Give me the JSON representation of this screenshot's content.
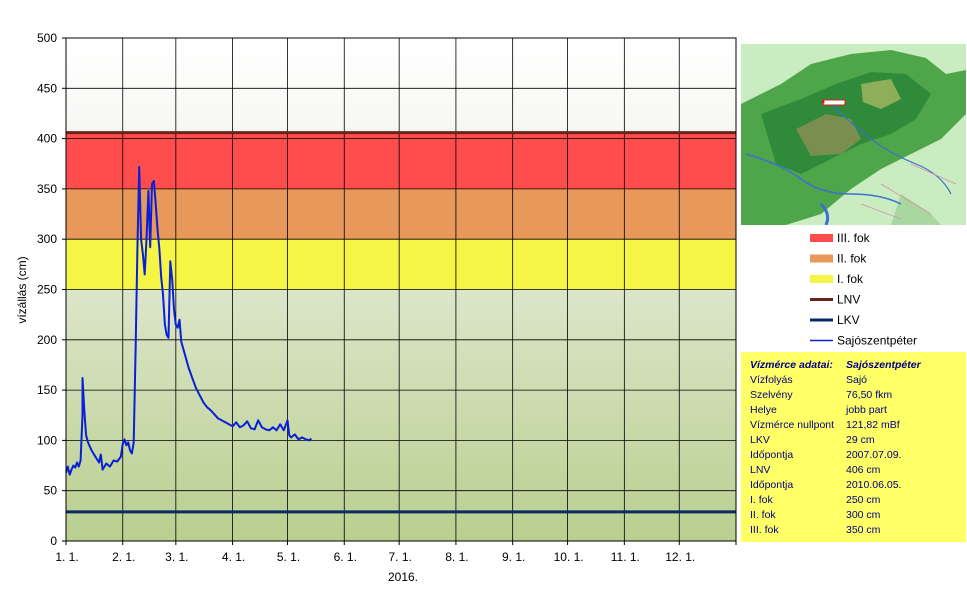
{
  "chart_data": {
    "type": "line",
    "ylabel": "vízállás (cm)",
    "xlabel": "2016.",
    "ylim": [
      0,
      500
    ],
    "yticks": [
      0,
      50,
      100,
      150,
      200,
      250,
      300,
      350,
      400,
      450,
      500
    ],
    "x_range": [
      "2016-01-01",
      "2017-01-01"
    ],
    "x_tick_labels": [
      "1. 1.",
      "2. 1.",
      "3. 1.",
      "4. 1.",
      "5. 1.",
      "6. 1.",
      "7. 1.",
      "8. 1.",
      "9. 1.",
      "10. 1.",
      "11. 1.",
      "12. 1."
    ],
    "grid": true,
    "legend_position": "right",
    "bands": [
      {
        "name": "III. fok",
        "from": 350,
        "to": 406,
        "color": "#ff4d4d"
      },
      {
        "name": "II. fok",
        "from": 300,
        "to": 350,
        "color": "#e8995a"
      },
      {
        "name": "I. fok",
        "from": 250,
        "to": 300,
        "color": "#f5f545"
      }
    ],
    "reference_lines": [
      {
        "name": "LNV",
        "value": 406,
        "color": "#6b2418"
      },
      {
        "name": "LKV",
        "value": 29,
        "color": "#0a2a66"
      }
    ],
    "series": [
      {
        "name": "Sajószentpéter",
        "color": "#0a1fd6",
        "points": [
          [
            "2016-01-01",
            68
          ],
          [
            "2016-01-02",
            74
          ],
          [
            "2016-01-03",
            66
          ],
          [
            "2016-01-04",
            71
          ],
          [
            "2016-01-05",
            75
          ],
          [
            "2016-01-06",
            73
          ],
          [
            "2016-01-07",
            78
          ],
          [
            "2016-01-08",
            74
          ],
          [
            "2016-01-09",
            80
          ],
          [
            "2016-01-10",
            125
          ],
          [
            "2016-01-10",
            162
          ],
          [
            "2016-01-11",
            130
          ],
          [
            "2016-01-12",
            105
          ],
          [
            "2016-01-13",
            98
          ],
          [
            "2016-01-15",
            90
          ],
          [
            "2016-01-17",
            84
          ],
          [
            "2016-01-19",
            78
          ],
          [
            "2016-01-20",
            86
          ],
          [
            "2016-01-21",
            71
          ],
          [
            "2016-01-23",
            77
          ],
          [
            "2016-01-25",
            74
          ],
          [
            "2016-01-27",
            80
          ],
          [
            "2016-01-29",
            79
          ],
          [
            "2016-01-31",
            84
          ],
          [
            "2016-02-01",
            96
          ],
          [
            "2016-02-02",
            101
          ],
          [
            "2016-02-03",
            95
          ],
          [
            "2016-02-04",
            98
          ],
          [
            "2016-02-05",
            90
          ],
          [
            "2016-02-06",
            87
          ],
          [
            "2016-02-07",
            98
          ],
          [
            "2016-02-08",
            190
          ],
          [
            "2016-02-09",
            290
          ],
          [
            "2016-02-10",
            372
          ],
          [
            "2016-02-11",
            300
          ],
          [
            "2016-02-12",
            285
          ],
          [
            "2016-02-13",
            265
          ],
          [
            "2016-02-14",
            300
          ],
          [
            "2016-02-15",
            348
          ],
          [
            "2016-02-16",
            292
          ],
          [
            "2016-02-17",
            355
          ],
          [
            "2016-02-18",
            358
          ],
          [
            "2016-02-19",
            335
          ],
          [
            "2016-02-20",
            310
          ],
          [
            "2016-02-21",
            290
          ],
          [
            "2016-02-22",
            262
          ],
          [
            "2016-02-23",
            245
          ],
          [
            "2016-02-24",
            215
          ],
          [
            "2016-02-25",
            205
          ],
          [
            "2016-02-26",
            202
          ],
          [
            "2016-02-27",
            278
          ],
          [
            "2016-02-28",
            260
          ],
          [
            "2016-02-29",
            230
          ],
          [
            "2016-03-01",
            215
          ],
          [
            "2016-03-02",
            212
          ],
          [
            "2016-03-03",
            220
          ],
          [
            "2016-03-04",
            198
          ],
          [
            "2016-03-06",
            185
          ],
          [
            "2016-03-08",
            172
          ],
          [
            "2016-03-10",
            162
          ],
          [
            "2016-03-12",
            152
          ],
          [
            "2016-03-14",
            145
          ],
          [
            "2016-03-16",
            138
          ],
          [
            "2016-03-18",
            133
          ],
          [
            "2016-03-20",
            130
          ],
          [
            "2016-03-22",
            126
          ],
          [
            "2016-03-24",
            122
          ],
          [
            "2016-03-26",
            120
          ],
          [
            "2016-03-28",
            118
          ],
          [
            "2016-03-30",
            116
          ],
          [
            "2016-04-01",
            114
          ],
          [
            "2016-04-03",
            118
          ],
          [
            "2016-04-05",
            113
          ],
          [
            "2016-04-07",
            115
          ],
          [
            "2016-04-09",
            119
          ],
          [
            "2016-04-11",
            112
          ],
          [
            "2016-04-13",
            111
          ],
          [
            "2016-04-15",
            120
          ],
          [
            "2016-04-17",
            113
          ],
          [
            "2016-04-19",
            111
          ],
          [
            "2016-04-21",
            110
          ],
          [
            "2016-04-23",
            113
          ],
          [
            "2016-04-25",
            110
          ],
          [
            "2016-04-27",
            116
          ],
          [
            "2016-04-29",
            110
          ],
          [
            "2016-05-01",
            120
          ],
          [
            "2016-05-02",
            105
          ],
          [
            "2016-05-03",
            103
          ],
          [
            "2016-05-05",
            106
          ],
          [
            "2016-05-07",
            101
          ],
          [
            "2016-05-09",
            103
          ],
          [
            "2016-05-11",
            101
          ],
          [
            "2016-05-13",
            100
          ],
          [
            "2016-05-14",
            102
          ]
        ]
      }
    ]
  },
  "legend": [
    {
      "label": "III. fok",
      "kind": "band",
      "color": "#ff4d4d"
    },
    {
      "label": "II. fok",
      "kind": "band",
      "color": "#e8995a"
    },
    {
      "label": "I. fok",
      "kind": "band",
      "color": "#f5f545"
    },
    {
      "label": "LNV",
      "kind": "line",
      "color": "#6b2418"
    },
    {
      "label": "LKV",
      "kind": "line",
      "color": "#0a2a66"
    },
    {
      "label": "Sajószentpéter",
      "kind": "thin",
      "color": "#0a1fd6"
    }
  ],
  "station_info": {
    "header": {
      "key": "Vízmérce adatai:",
      "value": "Sajószentpéter"
    },
    "rows": [
      {
        "key": "Vízfolyás",
        "value": "Sajó"
      },
      {
        "key": "Szelvény",
        "value": "76,50 fkm"
      },
      {
        "key": "Helye",
        "value": "jobb part"
      },
      {
        "key": "Vízmérce nullpont",
        "value": "121,82 mBf"
      },
      {
        "key": "LKV",
        "value": "29 cm"
      },
      {
        "key": "Időpontja",
        "value": "2007.07.09."
      },
      {
        "key": "LNV",
        "value": "406 cm"
      },
      {
        "key": "Időpontja",
        "value": "2010.06.05."
      },
      {
        "key": "I. fok",
        "value": "250 cm"
      },
      {
        "key": "II. fok",
        "value": "300 cm"
      },
      {
        "key": "III. fok",
        "value": "350 cm"
      }
    ]
  }
}
